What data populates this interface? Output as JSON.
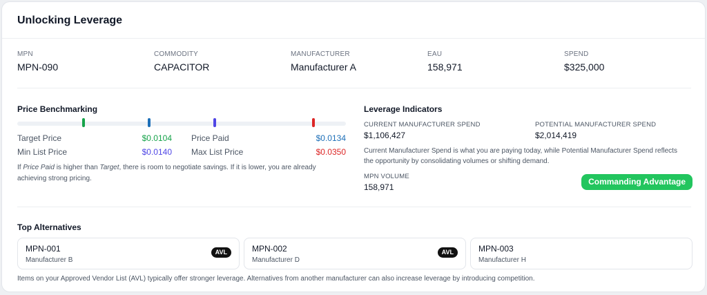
{
  "card": {
    "title": "Unlocking Leverage"
  },
  "summary": [
    {
      "label": "MPN",
      "value": "MPN-090"
    },
    {
      "label": "COMMODITY",
      "value": "CAPACITOR"
    },
    {
      "label": "MANUFACTURER",
      "value": "Manufacturer A"
    },
    {
      "label": "EAU",
      "value": "158,971"
    },
    {
      "label": "SPEND",
      "value": "$325,000"
    }
  ],
  "benchmarking": {
    "title": "Price Benchmarking",
    "target": {
      "label": "Target Price",
      "value": "$0.0104",
      "color": "#16a34a"
    },
    "paid": {
      "label": "Price Paid",
      "value": "$0.0134",
      "color": "#1d6fb8"
    },
    "min": {
      "label": "Min List Price",
      "value": "$0.0140",
      "color": "#4f46e5"
    },
    "max": {
      "label": "Max List Price",
      "value": "$0.0350",
      "color": "#dc2626"
    },
    "note_parts": {
      "p1": "If ",
      "price_paid": "Price Paid",
      "p2": " is higher than ",
      "target": "Target",
      "p3": ", there is room to negotiate savings. If it is lower, you are already achieving strong pricing."
    }
  },
  "leverage": {
    "title": "Leverage Indicators",
    "current_label": "CURRENT MANUFACTURER SPEND",
    "current_value": "$1,106,427",
    "potential_label": "POTENTIAL MANUFACTURER SPEND",
    "potential_value": "$2,014,419",
    "note": "Current Manufacturer Spend is what you are paying today, while Potential Manufacturer Spend reflects the opportunity by consolidating volumes or shifting demand.",
    "volume_label": "MPN VOLUME",
    "volume_value": "158,971",
    "badge": "Commanding Advantage",
    "badge_color": "#22c55e"
  },
  "alternatives": {
    "title": "Top Alternatives",
    "items": [
      {
        "mpn": "MPN-001",
        "manufacturer": "Manufacturer B",
        "tag": "AVL"
      },
      {
        "mpn": "MPN-002",
        "manufacturer": "Manufacturer D",
        "tag": "AVL"
      },
      {
        "mpn": "MPN-003",
        "manufacturer": "Manufacturer H",
        "tag": ""
      }
    ],
    "note": "Items on your Approved Vendor List (AVL) typically offer stronger leverage. Alternatives from another manufacturer can also increase leverage by introducing competition."
  }
}
